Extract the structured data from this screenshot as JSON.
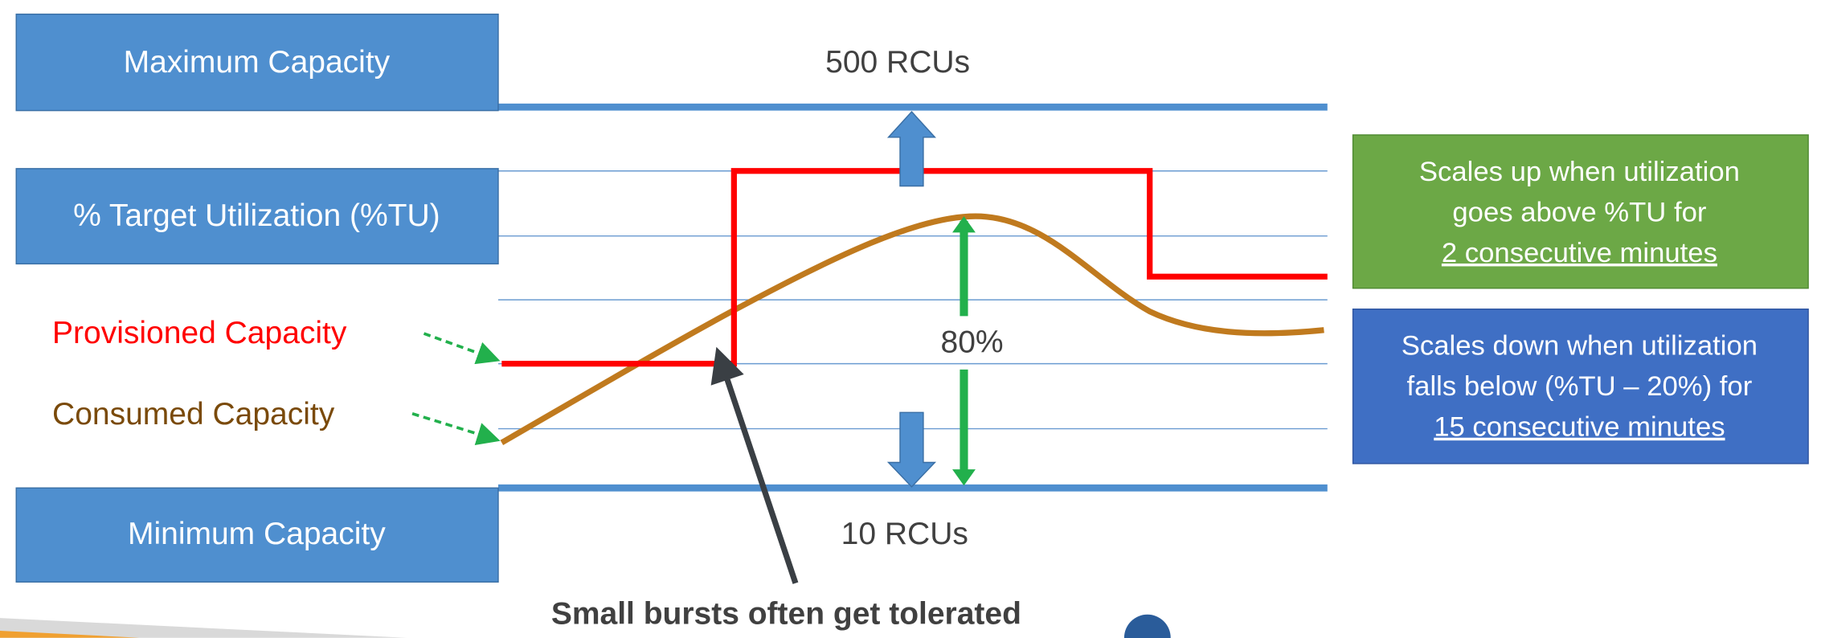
{
  "boxes": {
    "maximum": "Maximum Capacity",
    "target": "% Target Utilization (%TU)",
    "minimum": "Minimum Capacity"
  },
  "legend": {
    "provisioned": "Provisioned Capacity",
    "consumed": "Consumed Capacity"
  },
  "labels": {
    "max_rcu": "500 RCUs",
    "min_rcu": "10 RCUs",
    "threshold": "80%",
    "note": "Small bursts often get tolerated"
  },
  "scale_up": {
    "lines": [
      "Scales up when utilization",
      "goes above %TU for"
    ],
    "emphasis": "2 consecutive minutes"
  },
  "scale_down": {
    "lines": [
      "Scales down when utilization",
      "falls below (%TU – 20%) for"
    ],
    "emphasis": "15 consecutive minutes"
  }
}
